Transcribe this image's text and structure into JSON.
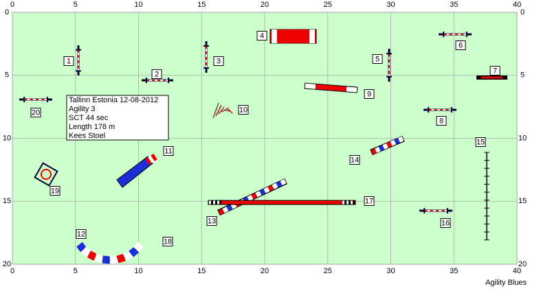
{
  "axes": {
    "x_ticks": [
      0,
      5,
      10,
      15,
      20,
      25,
      30,
      35,
      40
    ],
    "y_ticks": [
      0,
      5,
      10,
      15,
      20
    ]
  },
  "obstacles": [
    "1",
    "2",
    "3",
    "4",
    "5",
    "6",
    "7",
    "8",
    "9",
    "10",
    "11",
    "12",
    "13",
    "14",
    "15",
    "16",
    "17",
    "18",
    "19",
    "20"
  ],
  "info": [
    "Tallinn Estonia 12-08-2012",
    "Agility 3",
    "SCT 44 sec",
    "Length 178 m",
    "Kees Stoel"
  ],
  "footer": "Agility Blues"
}
